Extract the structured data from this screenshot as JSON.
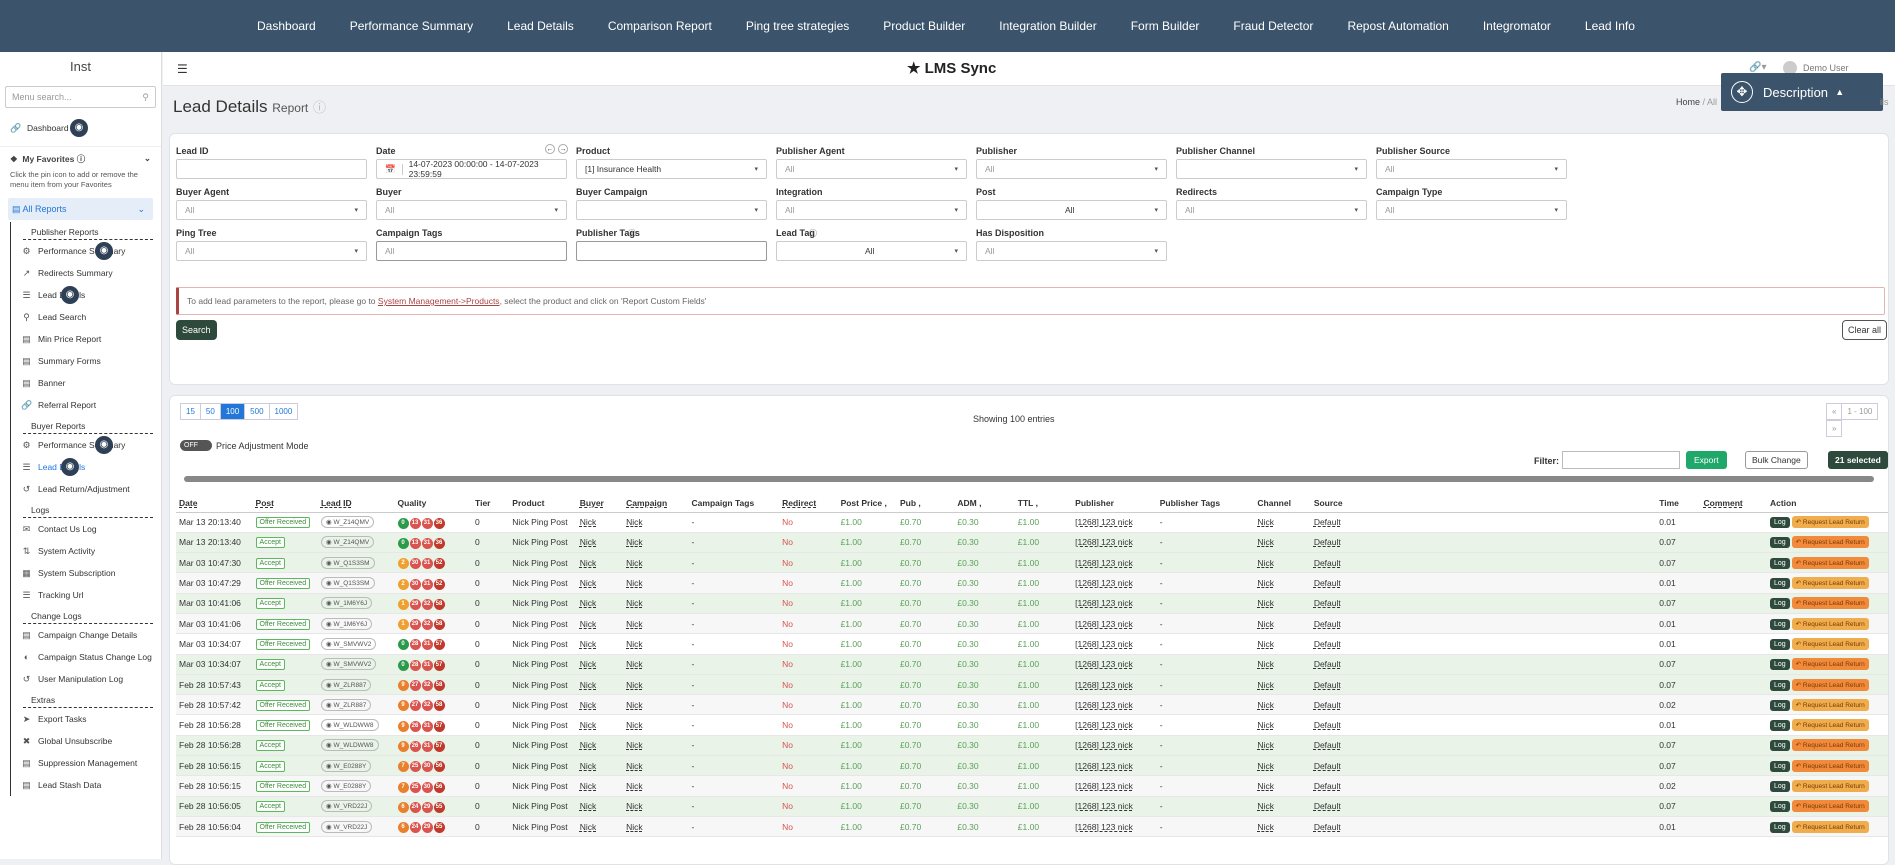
{
  "nav": [
    "Dashboard",
    "Performance Summary",
    "Lead Details",
    "Comparison Report",
    "Ping tree strategies",
    "Product Builder",
    "Integration Builder",
    "Form Builder",
    "Fraud Detector",
    "Repost Automation",
    "Integromator",
    "Lead Info"
  ],
  "sidebar": {
    "brand": "Inst",
    "search_placeholder": "Menu search...",
    "dashboard": "Dashboard",
    "favorites_title": "My Favorites",
    "favorites_desc": "Click the pin icon to add or remove the menu item from your Favorites",
    "all_reports": "All Reports",
    "publisher_head": "Publisher Reports",
    "publisher_items": [
      "Performance Summary",
      "Redirects Summary",
      "Lead Details",
      "Lead Search",
      "Min Price Report",
      "Summary Forms",
      "Banner",
      "Referral Report"
    ],
    "buyer_head": "Buyer Reports",
    "buyer_items": [
      "Performance Summary",
      "Lead Details",
      "Lead Return/Adjustment"
    ],
    "logs_head": "Logs",
    "logs_items": [
      "Contact Us Log",
      "System Activity",
      "System Subscription",
      "Tracking Url"
    ],
    "change_head": "Change Logs",
    "change_items": [
      "Campaign Change Details",
      "Campaign Status Change Log",
      "User Manipulation Log"
    ],
    "extras_head": "Extras",
    "extras_items": [
      "Export Tasks",
      "Global Unsubscribe",
      "Suppression Management",
      "Lead Stash Data"
    ]
  },
  "topbar": {
    "logo": "LMS Sync",
    "user": "Demo User",
    "description_btn": "Description",
    "breadcrumb_home": "Home",
    "breadcrumb_sep": "/ All",
    "breadcrumb_tail": "ils"
  },
  "page": {
    "title": "Lead Details",
    "subtitle": "Report"
  },
  "filters": {
    "lead_id": "Lead ID",
    "date": "Date",
    "date_value": "14-07-2023 00:00:00 - 14-07-2023 23:59:59",
    "product": "Product",
    "product_value": "[1] Insurance Health",
    "publisher_agent": "Publisher Agent",
    "publisher": "Publisher",
    "publisher_channel": "Publisher Channel",
    "publisher_source": "Publisher Source",
    "buyer_agent": "Buyer Agent",
    "buyer": "Buyer",
    "buyer_campaign": "Buyer Campaign",
    "integration": "Integration",
    "post": "Post",
    "redirects": "Redirects",
    "campaign_type": "Campaign Type",
    "ping_tree": "Ping Tree",
    "campaign_tags": "Campaign Tags",
    "publisher_tags": "Publisher Tags",
    "lead_tag": "Lead Tag",
    "has_disposition": "Has Disposition",
    "all": "All",
    "notice_pre": "To add lead parameters to the report, please go to ",
    "notice_link": "System Management->Products",
    "notice_post": ", select the product and click on 'Report Custom Fields'",
    "search_btn": "Search",
    "clear_btn": "Clear all"
  },
  "results": {
    "page_sizes": [
      "15",
      "50",
      "100",
      "500",
      "1000"
    ],
    "showing": "Showing 100 entries",
    "pager": "1 - 100",
    "toggle": "OFF",
    "price_mode": "Price Adjustment Mode",
    "filter_label": "Filter:",
    "export": "Export",
    "bulk": "Bulk Change",
    "selected": "21 selected",
    "columns": [
      "Date",
      "Post",
      "Lead ID",
      "Quality",
      "Tier",
      "Product",
      "Buyer",
      "Campaign",
      "Campaign Tags",
      "Redirect",
      "Post Price ,",
      "Pub ,",
      "ADM ,",
      "TTL ,",
      "Publisher",
      "Publisher Tags",
      "Channel",
      "Source",
      "Time",
      "Comment",
      "Action"
    ],
    "rows": [
      {
        "date": "Mar 13 20:13:40",
        "post": "Offer Received",
        "lead": "W_Z14QMV",
        "q": [
          "0",
          "13",
          "31",
          "36"
        ],
        "time": "0.01",
        "hot": false
      },
      {
        "date": "Mar 13 20:13:40",
        "post": "Accept",
        "lead": "W_Z14QMV",
        "q": [
          "0",
          "13",
          "31",
          "36"
        ],
        "time": "0.07",
        "hot": true
      },
      {
        "date": "Mar 03 10:47:30",
        "post": "Accept",
        "lead": "W_Q1S3SM",
        "q": [
          "2",
          "30",
          "31",
          "52"
        ],
        "time": "0.07",
        "hot": true
      },
      {
        "date": "Mar 03 10:47:29",
        "post": "Offer Received",
        "lead": "W_Q1S3SM",
        "q": [
          "2",
          "30",
          "31",
          "52"
        ],
        "time": "0.01",
        "hot": false
      },
      {
        "date": "Mar 03 10:41:06",
        "post": "Accept",
        "lead": "W_1M6Y6J",
        "q": [
          "1",
          "29",
          "32",
          "58"
        ],
        "time": "0.07",
        "hot": true
      },
      {
        "date": "Mar 03 10:41:06",
        "post": "Offer Received",
        "lead": "W_1M6Y6J",
        "q": [
          "1",
          "29",
          "32",
          "58"
        ],
        "time": "0.01",
        "hot": false
      },
      {
        "date": "Mar 03 10:34:07",
        "post": "Offer Received",
        "lead": "W_SMVWV2",
        "q": [
          "0",
          "28",
          "31",
          "57"
        ],
        "time": "0.01",
        "hot": false
      },
      {
        "date": "Mar 03 10:34:07",
        "post": "Accept",
        "lead": "W_SMVWV2",
        "q": [
          "0",
          "28",
          "31",
          "57"
        ],
        "time": "0.07",
        "hot": true
      },
      {
        "date": "Feb 28 10:57:43",
        "post": "Accept",
        "lead": "W_ZLR887",
        "q": [
          "9",
          "27",
          "32",
          "58"
        ],
        "time": "0.07",
        "hot": true
      },
      {
        "date": "Feb 28 10:57:42",
        "post": "Offer Received",
        "lead": "W_ZLR887",
        "q": [
          "9",
          "27",
          "32",
          "58"
        ],
        "time": "0.02",
        "hot": false
      },
      {
        "date": "Feb 28 10:56:28",
        "post": "Offer Received",
        "lead": "W_WLDWW8",
        "q": [
          "9",
          "26",
          "31",
          "57"
        ],
        "time": "0.01",
        "hot": false
      },
      {
        "date": "Feb 28 10:56:28",
        "post": "Accept",
        "lead": "W_WLDWW8",
        "q": [
          "9",
          "26",
          "31",
          "57"
        ],
        "time": "0.07",
        "hot": true
      },
      {
        "date": "Feb 28 10:56:15",
        "post": "Accept",
        "lead": "W_E0288Y",
        "q": [
          "7",
          "25",
          "30",
          "56"
        ],
        "time": "0.07",
        "hot": true
      },
      {
        "date": "Feb 28 10:56:15",
        "post": "Offer Received",
        "lead": "W_E0288Y",
        "q": [
          "7",
          "25",
          "30",
          "56"
        ],
        "time": "0.02",
        "hot": false
      },
      {
        "date": "Feb 28 10:56:05",
        "post": "Accept",
        "lead": "W_VRD22J",
        "q": [
          "6",
          "24",
          "29",
          "55"
        ],
        "time": "0.07",
        "hot": true
      },
      {
        "date": "Feb 28 10:56:04",
        "post": "Offer Received",
        "lead": "W_VRD22J",
        "q": [
          "6",
          "24",
          "29",
          "55"
        ],
        "time": "0.01",
        "hot": false
      }
    ],
    "cell": {
      "tier": "0",
      "product": "Nick Ping Post",
      "buyer": "Nick",
      "campaign": "Nick",
      "tags": "-",
      "redirect": "No",
      "post_price": "£1.00",
      "pub": "£0.70",
      "adm": "£0.30",
      "ttl": "£1.00",
      "publisher": "[1268] 123 nick",
      "pubtags": "-",
      "channel": "Nick",
      "source": "Default",
      "log": "Log",
      "return": "Request Lead Return"
    }
  }
}
